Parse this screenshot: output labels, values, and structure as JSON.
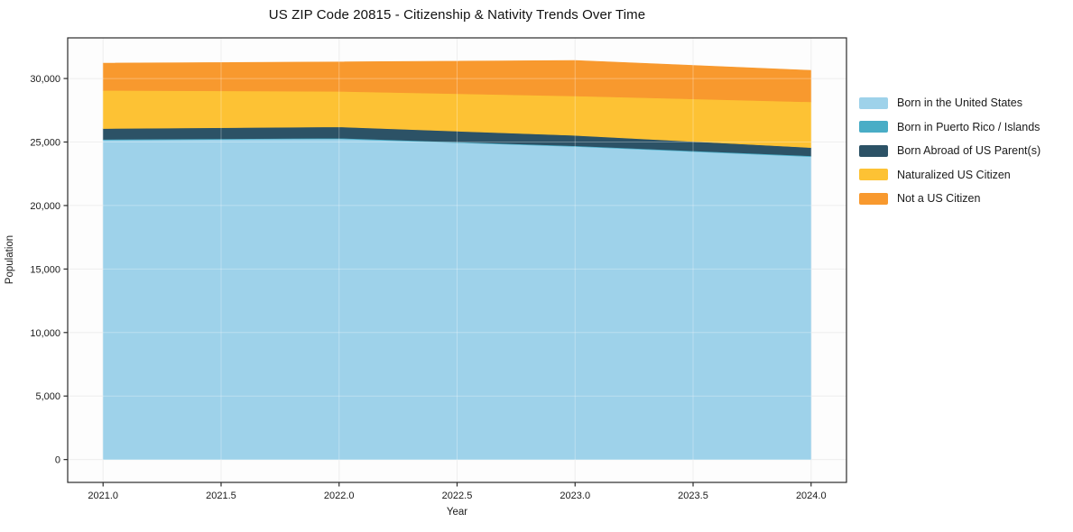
{
  "figure": {
    "background": "#ffffff"
  },
  "chart_data": {
    "type": "area",
    "stacked": true,
    "title": "US ZIP Code 20815 - Citizenship & Nativity Trends Over Time",
    "xlabel": "Year",
    "ylabel": "Population",
    "x": [
      2021,
      2022,
      2023,
      2024
    ],
    "series": [
      {
        "name": "Born in the United States",
        "color": "#9ed2ea",
        "values": [
          25150,
          25250,
          24650,
          23850
        ]
      },
      {
        "name": "Born in Puerto Rico / Islands",
        "color": "#49adc6",
        "values": [
          60,
          60,
          50,
          60
        ]
      },
      {
        "name": "Born Abroad of US Parent(s)",
        "color": "#2c5266",
        "values": [
          850,
          880,
          820,
          650
        ]
      },
      {
        "name": "Naturalized US Citizen",
        "color": "#fdc234",
        "values": [
          3000,
          2800,
          3100,
          3600
        ]
      },
      {
        "name": "Not a US Citizen",
        "color": "#f8992e",
        "values": [
          2150,
          2320,
          2800,
          2480
        ]
      }
    ],
    "xticks": [
      2021.0,
      2021.5,
      2022.0,
      2022.5,
      2023.0,
      2023.5,
      2024.0
    ],
    "yticks": [
      0,
      5000,
      10000,
      15000,
      20000,
      25000,
      30000
    ],
    "xlim": [
      2020.85,
      2024.15
    ],
    "ylim": [
      -1800,
      33200
    ],
    "grid": true,
    "legend_position": "right"
  },
  "colors": {
    "grid": "#e8e8e8",
    "grid_over_fill": "rgba(255,255,255,0.30)",
    "spine": "#2b2b2b",
    "tick": "#2b2b2b",
    "text": "#1a1a1a"
  }
}
